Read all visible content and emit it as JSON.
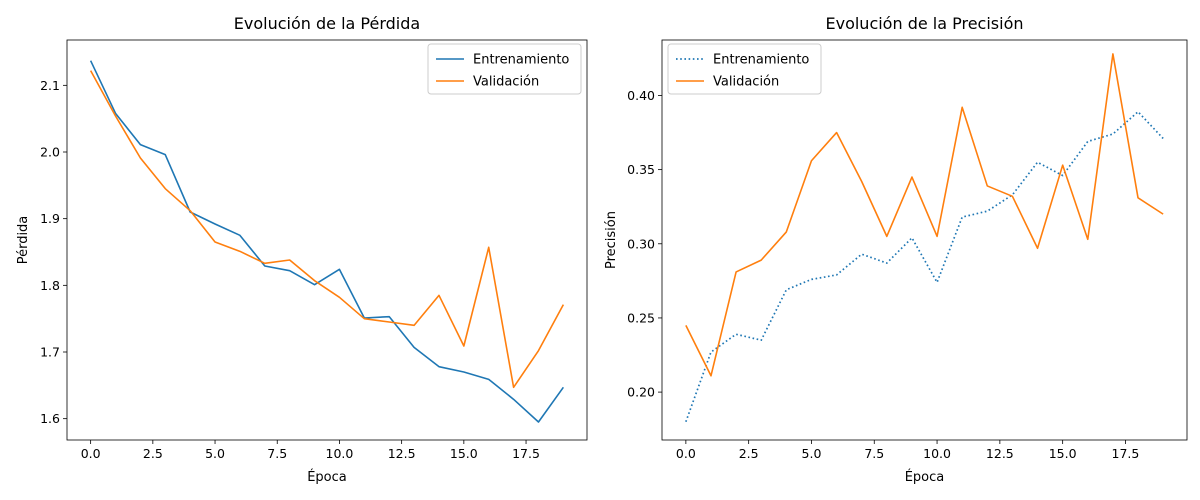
{
  "chart_data": [
    {
      "type": "line",
      "title": "Evolución de la Pérdida",
      "xlabel": "Época",
      "ylabel": "Pérdida",
      "xlim": [
        -0.95,
        19.95
      ],
      "ylim": [
        1.568,
        2.168
      ],
      "xticks": [
        0.0,
        2.5,
        5.0,
        7.5,
        10.0,
        12.5,
        15.0,
        17.5
      ],
      "xtick_labels": [
        "0.0",
        "2.5",
        "5.0",
        "7.5",
        "10.0",
        "12.5",
        "15.0",
        "17.5"
      ],
      "yticks": [
        1.6,
        1.7,
        1.8,
        1.9,
        2.0,
        2.1
      ],
      "ytick_labels": [
        "1.6",
        "1.7",
        "1.8",
        "1.9",
        "2.0",
        "2.1"
      ],
      "legend_position": "top-right",
      "x": [
        0,
        1,
        2,
        3,
        4,
        5,
        6,
        7,
        8,
        9,
        10,
        11,
        12,
        13,
        14,
        15,
        16,
        17,
        18,
        19
      ],
      "series": [
        {
          "name": "Entrenamiento",
          "color": "#1f77b4",
          "linestyle": "solid",
          "values": [
            2.137,
            2.058,
            2.011,
            1.996,
            1.91,
            1.892,
            1.875,
            1.829,
            1.822,
            1.801,
            1.824,
            1.751,
            1.753,
            1.707,
            1.678,
            1.67,
            1.659,
            1.629,
            1.595,
            1.647
          ]
        },
        {
          "name": "Validación",
          "color": "#ff7f0e",
          "linestyle": "solid",
          "values": [
            2.122,
            2.054,
            1.991,
            1.945,
            1.912,
            1.865,
            1.851,
            1.833,
            1.838,
            1.807,
            1.782,
            1.75,
            1.745,
            1.74,
            1.785,
            1.709,
            1.857,
            1.647,
            1.702,
            1.771
          ]
        }
      ]
    },
    {
      "type": "line",
      "title": "Evolución de la Precisión",
      "xlabel": "Época",
      "ylabel": "Precisión",
      "xlim": [
        -0.95,
        19.95
      ],
      "ylim": [
        0.1677,
        0.4374
      ],
      "xticks": [
        0.0,
        2.5,
        5.0,
        7.5,
        10.0,
        12.5,
        15.0,
        17.5
      ],
      "xtick_labels": [
        "0.0",
        "2.5",
        "5.0",
        "7.5",
        "10.0",
        "12.5",
        "15.0",
        "17.5"
      ],
      "yticks": [
        0.2,
        0.25,
        0.3,
        0.35,
        0.4
      ],
      "ytick_labels": [
        "0.20",
        "0.25",
        "0.30",
        "0.35",
        "0.40"
      ],
      "legend_position": "top-left",
      "x": [
        0,
        1,
        2,
        3,
        4,
        5,
        6,
        7,
        8,
        9,
        10,
        11,
        12,
        13,
        14,
        15,
        16,
        17,
        18,
        19
      ],
      "series": [
        {
          "name": "Entrenamiento",
          "color": "#1f77b4",
          "linestyle": "dotted",
          "values": [
            0.18,
            0.227,
            0.239,
            0.235,
            0.269,
            0.276,
            0.279,
            0.293,
            0.287,
            0.304,
            0.274,
            0.318,
            0.322,
            0.333,
            0.355,
            0.346,
            0.369,
            0.374,
            0.389,
            0.371
          ]
        },
        {
          "name": "Validación",
          "color": "#ff7f0e",
          "linestyle": "solid",
          "values": [
            0.245,
            0.211,
            0.281,
            0.289,
            0.308,
            0.356,
            0.375,
            0.342,
            0.305,
            0.345,
            0.305,
            0.392,
            0.339,
            0.332,
            0.297,
            0.353,
            0.303,
            0.428,
            0.331,
            0.32
          ]
        }
      ]
    }
  ]
}
